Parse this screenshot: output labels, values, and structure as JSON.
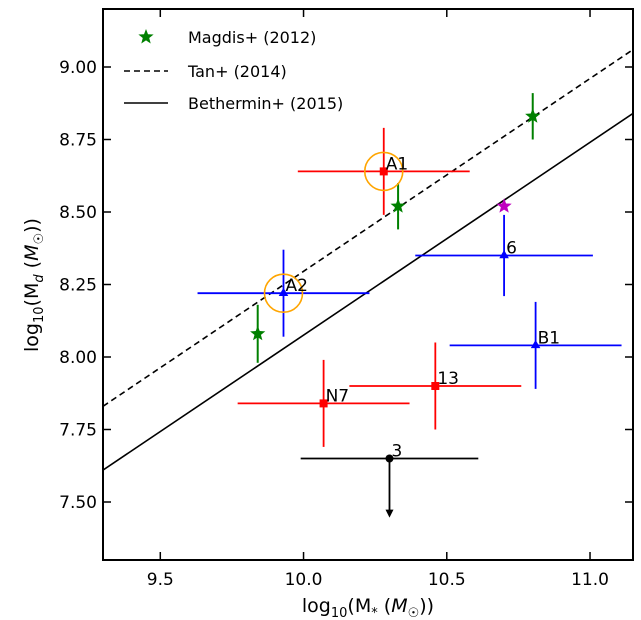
{
  "chart_data": {
    "type": "scatter",
    "xlabel": "log10(M* (M☉))",
    "ylabel": "log10(Md (M☉))",
    "xlim": [
      9.3,
      11.15
    ],
    "ylim": [
      7.3,
      9.2
    ],
    "xticks": [
      9.5,
      10.0,
      10.5,
      11.0
    ],
    "xtick_labels": [
      "9.5",
      "10.0",
      "10.5",
      "11.0"
    ],
    "yticks": [
      7.5,
      7.75,
      8.0,
      8.25,
      8.5,
      8.75,
      9.0
    ],
    "ytick_labels": [
      "7.50",
      "7.75",
      "8.00",
      "8.25",
      "8.50",
      "8.75",
      "9.00"
    ],
    "grid": false,
    "legend_position": "top-left",
    "lines": [
      {
        "name": "Tan+ (2014)",
        "style": "dashed",
        "color": "#000000",
        "x": [
          9.3,
          11.15
        ],
        "y": [
          7.83,
          9.06
        ]
      },
      {
        "name": "Bethermin+ (2015)",
        "style": "solid",
        "color": "#000000",
        "x": [
          9.3,
          11.15
        ],
        "y": [
          7.61,
          8.84
        ]
      }
    ],
    "magdis": {
      "name": "Magdis+ (2012)",
      "color": "#008000",
      "points": [
        {
          "x": 9.84,
          "y": 8.08,
          "yerr": 0.1
        },
        {
          "x": 10.33,
          "y": 8.52,
          "yerr": 0.08
        },
        {
          "x": 10.8,
          "y": 8.83,
          "yerr": 0.08
        }
      ]
    },
    "magenta_star": {
      "x": 10.7,
      "y": 8.52,
      "color": "#bf00bf"
    },
    "sources": [
      {
        "label": "A1",
        "x": 10.28,
        "y": 8.64,
        "xerr": 0.3,
        "yerr": 0.15,
        "color": "#ff0000",
        "marker": "square",
        "ring": true
      },
      {
        "label": "A2",
        "x": 9.93,
        "y": 8.22,
        "xerr": 0.3,
        "yerr": 0.15,
        "color": "#0000ff",
        "marker": "triangle",
        "ring": true
      },
      {
        "label": "6",
        "x": 10.7,
        "y": 8.35,
        "xerr": 0.31,
        "yerr": 0.14,
        "color": "#0000ff",
        "marker": "triangle",
        "ring": false
      },
      {
        "label": "B1",
        "x": 10.81,
        "y": 8.04,
        "xerr": 0.3,
        "yerr": 0.15,
        "color": "#0000ff",
        "marker": "triangle",
        "ring": false
      },
      {
        "label": "13",
        "x": 10.46,
        "y": 7.9,
        "xerr": 0.3,
        "yerr": 0.15,
        "color": "#ff0000",
        "marker": "square",
        "ring": false
      },
      {
        "label": "N7",
        "x": 10.07,
        "y": 7.84,
        "xerr": 0.3,
        "yerr": 0.15,
        "color": "#ff0000",
        "marker": "square",
        "ring": false
      },
      {
        "label": "3",
        "x": 10.3,
        "y": 7.65,
        "xerr": 0.31,
        "color": "#000000",
        "marker": "circle",
        "ring": false,
        "upper_limit": true,
        "limit_to": 7.46
      }
    ],
    "ring_color": "#ffa500"
  },
  "legend": [
    {
      "key": "magdis",
      "label": "Magdis+ (2012)"
    },
    {
      "key": "tan",
      "label": "Tan+ (2014)"
    },
    {
      "key": "bethermin",
      "label": "Bethermin+ (2015)"
    }
  ],
  "axis_text": {
    "x_prefix": "log",
    "x_sub": "10",
    "x_mid": "(M",
    "x_star": "*",
    "x_unit_open": " (",
    "x_unit": "M",
    "x_close": "))",
    "y_prefix": "log",
    "y_sub": "10",
    "y_mid": "(M",
    "y_d": "d",
    "y_unit_open": " (",
    "y_unit": "M",
    "y_close": "))",
    "sun": "☉"
  }
}
